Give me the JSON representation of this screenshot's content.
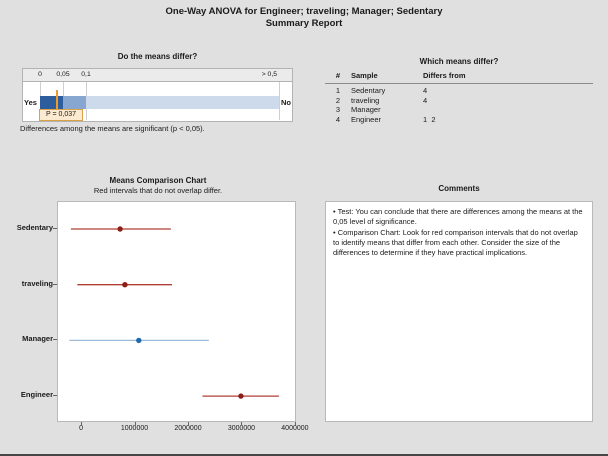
{
  "report": {
    "title_line1": "One-Way ANOVA for Engineer; traveling; Manager; Sedentary",
    "title_line2": "Summary Report"
  },
  "gauge": {
    "heading": "Do the means differ?",
    "scale_labels": [
      "0",
      "0,05",
      "0,1"
    ],
    "scale_label_right": "> 0,5",
    "yes_label": "Yes",
    "no_label": "No",
    "p_value": 0.037,
    "p_label": "P = 0,037",
    "caption": "Differences among the means are significant (p < 0,05)."
  },
  "table": {
    "heading": "Which means differ?",
    "columns": {
      "num": "#",
      "sample": "Sample",
      "differs": "Differs from"
    },
    "rows": [
      {
        "num": "1",
        "sample": "Sedentary",
        "differs": "4"
      },
      {
        "num": "2",
        "sample": "traveling",
        "differs": "4"
      },
      {
        "num": "3",
        "sample": "Manager",
        "differs": ""
      },
      {
        "num": "4",
        "sample": "Engineer",
        "differs": "1  2"
      }
    ]
  },
  "chart": {
    "heading": "Means Comparison Chart",
    "subtitle": "Red intervals that do not overlap differ."
  },
  "chart_data": {
    "type": "interval",
    "title": "Means Comparison Chart",
    "subtitle": "Red intervals that do not overlap differ.",
    "categories": [
      "Sedentary",
      "traveling",
      "Manager",
      "Engineer"
    ],
    "series": [
      {
        "name": "Sedentary",
        "low": -190000,
        "mean": 730000,
        "high": 1680000,
        "color": "red"
      },
      {
        "name": "traveling",
        "low": -70000,
        "mean": 820000,
        "high": 1700000,
        "color": "red"
      },
      {
        "name": "Manager",
        "low": -220000,
        "mean": 1080000,
        "high": 2390000,
        "color": "blue"
      },
      {
        "name": "Engineer",
        "low": 2270000,
        "mean": 2990000,
        "high": 3700000,
        "color": "red"
      }
    ],
    "xticks": [
      0,
      1000000,
      2000000,
      3000000,
      4000000
    ],
    "xtick_labels": [
      "0",
      "1000000",
      "2000000",
      "3000000",
      "4000000"
    ],
    "xlim": [
      -450000,
      4020000
    ],
    "grid": false,
    "legend": false
  },
  "comments": {
    "heading": "Comments",
    "bullet_char": "•",
    "bullets": [
      "Test: You can conclude that there are differences among the means at the 0,05 level of significance.",
      "Comparison Chart: Look for red comparison intervals that do not overlap to identify means that differ from each other. Consider the size of the differences to determine if they have practical implications."
    ]
  },
  "colors": {
    "background": "#e0e0e0",
    "panel_border": "#b3b3b3",
    "text": "#1a1a1a",
    "gauge_dark_blue": "#2e5d9e",
    "gauge_mid_blue": "#87a7d0",
    "gauge_light_blue": "#ccdaeb",
    "marker_orange": "#ec9c2f",
    "p_box_fill": "#fcead0",
    "p_box_border": "#daa147",
    "red_interval": "#b13f36",
    "red_dot": "#8e1f16",
    "blue_interval": "#9dbcdc",
    "blue_dot": "#2169ad",
    "separator": "#8a8a8a"
  }
}
